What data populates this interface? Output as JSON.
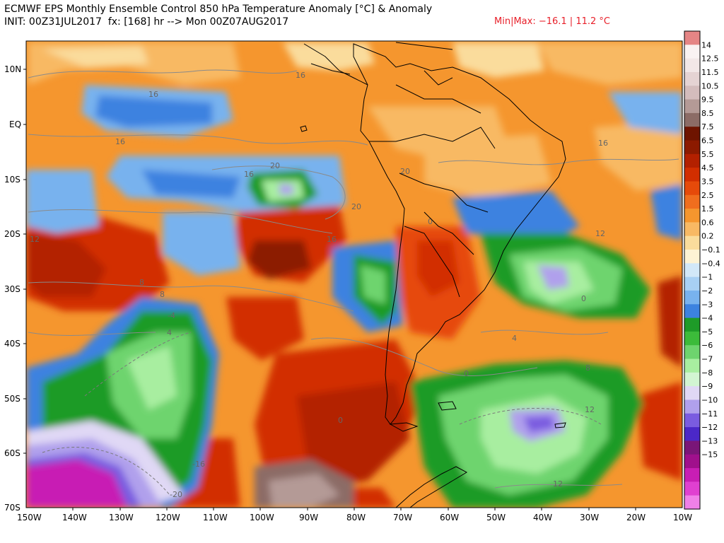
{
  "header": {
    "title_line1": "ECMWF EPS Monthly Ensemble Control 850 hPa Temperature Anomaly [°C] & Anomaly",
    "title_line2": "INIT: 00Z31JUL2017  fx: [168] hr --> Mon 00Z07AUG2017",
    "minmax": "Min|Max: −16.1 | 11.2 °C"
  },
  "map": {
    "lat_labels": [
      "10N",
      "EQ",
      "10S",
      "20S",
      "30S",
      "40S",
      "50S",
      "60S",
      "70S"
    ],
    "lon_labels": [
      "150W",
      "140W",
      "130W",
      "120W",
      "110W",
      "100W",
      "90W",
      "80W",
      "70W",
      "60W",
      "50W",
      "40W",
      "30W",
      "20W",
      "10W"
    ],
    "contour_labels": [
      "16",
      "16",
      "20",
      "20",
      "16",
      "12",
      "8",
      "4",
      "0",
      "-4",
      "0",
      "4",
      "8",
      "12",
      "0",
      "16",
      "20",
      "-16",
      "-20",
      "0",
      "12",
      "8",
      "12",
      "16",
      "16"
    ]
  },
  "colorbar": {
    "labels": [
      "14",
      "12.5",
      "11.5",
      "10.5",
      "9.5",
      "8.5",
      "7.5",
      "6.5",
      "5.5",
      "4.5",
      "3.5",
      "2.5",
      "1.5",
      "0.6",
      "0.2",
      "−0.1",
      "−0.4",
      "−1",
      "−2",
      "−3",
      "−4",
      "−5",
      "−6",
      "−7",
      "−8",
      "−9",
      "−10",
      "−11",
      "−12",
      "−13",
      "−15"
    ],
    "colors": [
      "#e58585",
      "#f9f2f2",
      "#f2e7e7",
      "#e5d3d3",
      "#d4bcbc",
      "#b49a96",
      "#8c6c66",
      "#6e1400",
      "#8c1a00",
      "#b32000",
      "#d22e00",
      "#e64a0a",
      "#f06e1e",
      "#f5962e",
      "#f8b964",
      "#fadc9c",
      "#fdf3d4",
      "#d2e8f8",
      "#a8d0f4",
      "#78b2ee",
      "#3c82e0",
      "#1e9b28",
      "#3cbb3a",
      "#6ed46e",
      "#a8eea0",
      "#d2f5d2",
      "#e0d8f5",
      "#b0a0ec",
      "#7a5ce0",
      "#4b28c8",
      "#7a1678",
      "#a0108c",
      "#c81eb4",
      "#e040d0",
      "#f080e8"
    ]
  }
}
